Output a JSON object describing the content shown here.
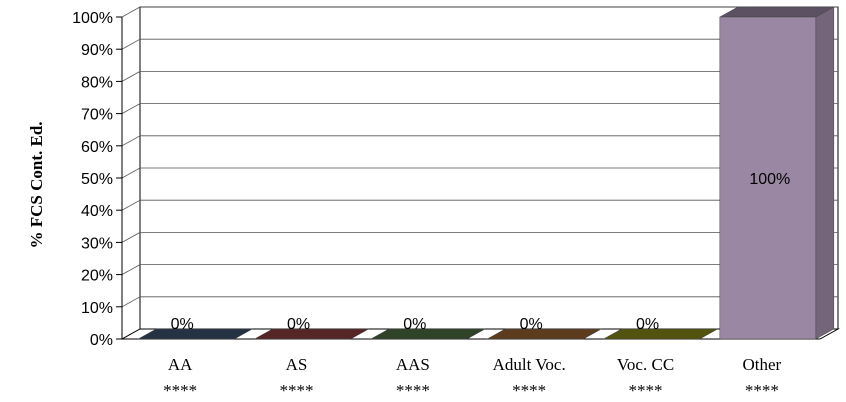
{
  "chart_data": {
    "type": "bar",
    "categories": [
      "AA",
      "AS",
      "AAS",
      "Adult Voc.",
      "Voc. CC",
      "Other"
    ],
    "sub_labels": [
      "****",
      "****",
      "****",
      "****",
      "****",
      "****"
    ],
    "values": [
      0,
      0,
      0,
      0,
      0,
      100
    ],
    "data_labels": [
      "0%",
      "0%",
      "0%",
      "0%",
      "0%",
      "100%"
    ],
    "colors": [
      "#3d5472",
      "#8e3f3d",
      "#4e7043",
      "#9b6432",
      "#8b8a1a",
      "#9a87a3"
    ],
    "ylabel": "% FCS  Cont. Ed.",
    "ylim": [
      0,
      100
    ],
    "y_ticks": [
      "0%",
      "10%",
      "20%",
      "30%",
      "40%",
      "50%",
      "60%",
      "70%",
      "80%",
      "90%",
      "100%"
    ],
    "grid": true,
    "legend": "none"
  }
}
